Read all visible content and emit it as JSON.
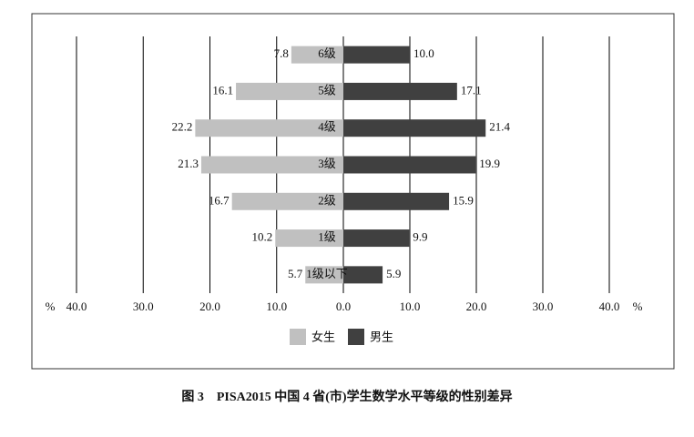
{
  "chart_data": {
    "type": "bar",
    "orientation": "horizontal",
    "layout": "butterfly",
    "caption": "图 3　PISA2015 中国 4 省(市)学生数学水平等级的性别差异",
    "categories": [
      "6级",
      "5级",
      "4级",
      "3级",
      "2级",
      "1级",
      "1级以下"
    ],
    "series": [
      {
        "name": "女生",
        "color": "#c0c0c0",
        "side": "left",
        "values": [
          7.8,
          16.1,
          22.2,
          21.3,
          16.7,
          10.2,
          5.7
        ],
        "value_labels": [
          "7.8",
          "16.1",
          "22.2",
          "21.3",
          "16.7",
          "10.2",
          "5.7"
        ]
      },
      {
        "name": "男生",
        "color": "#404040",
        "side": "right",
        "values": [
          10.0,
          17.1,
          21.4,
          19.9,
          15.9,
          9.9,
          5.9
        ],
        "value_labels": [
          "10.0",
          "17.1",
          "21.4",
          "19.9",
          "15.9",
          "9.9",
          "5.9"
        ]
      }
    ],
    "x_unit": "%",
    "left_xlim": [
      40,
      0
    ],
    "left_xticks": [
      {
        "value": 40,
        "label": "40.0"
      },
      {
        "value": 30,
        "label": "30.0"
      },
      {
        "value": 20,
        "label": "20.0"
      },
      {
        "value": 10,
        "label": "10.0"
      }
    ],
    "right_xlim": [
      0,
      40
    ],
    "right_xticks": [
      {
        "value": 0,
        "label": "0.0"
      },
      {
        "value": 10,
        "label": "10.0"
      },
      {
        "value": 20,
        "label": "20.0"
      },
      {
        "value": 30,
        "label": "30.0"
      },
      {
        "value": 40,
        "label": "40.0"
      }
    ],
    "grid": true,
    "legend": "bottom"
  }
}
